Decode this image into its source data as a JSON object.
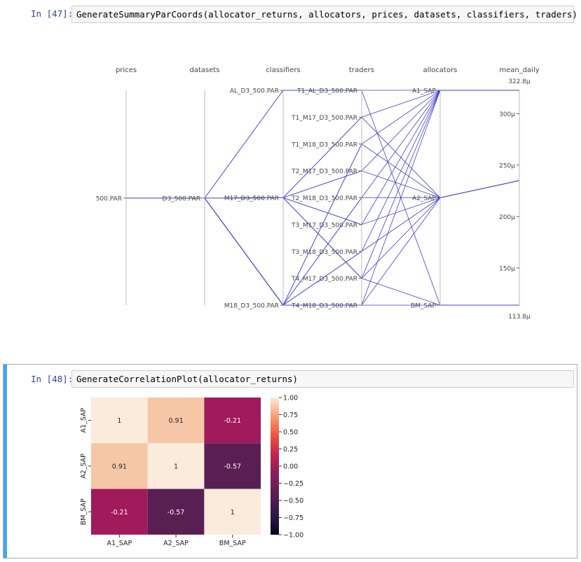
{
  "cells": [
    {
      "prompt": "In [47]:",
      "code": "GenerateSummaryParCoords(allocator_returns, allocators, prices, datasets, classifiers, traders)"
    },
    {
      "prompt": "In [48]:",
      "code": "GenerateCorrelationPlot(allocator_returns)"
    }
  ],
  "parcoords": {
    "line_color": "#3f3fcf",
    "dimensions": [
      {
        "label": "prices",
        "ticks": [
          "500.PAR"
        ]
      },
      {
        "label": "datasets",
        "ticks": [
          "D3_500.PAR"
        ]
      },
      {
        "label": "classifiers",
        "ticks": [
          "AL_D3_500.PAR",
          "M17_D3_500.PAR",
          "M18_D3_500.PAR"
        ]
      },
      {
        "label": "traders",
        "ticks": [
          "T1_AL_D3_500.PAR",
          "T1_M17_D3_500.PAR",
          "T1_M18_D3_500.PAR",
          "T2_M17_D3_500.PAR",
          "T2_M18_D3_500.PAR",
          "T3_M17_D3_500.PAR",
          "T3_M18_D3_500.PAR",
          "T4_M17_D3_500.PAR",
          "T4_M18_D3_500.PAR"
        ]
      },
      {
        "label": "allocators",
        "ticks": [
          "A1_SAP",
          "A2_SAP",
          "BM_SAP"
        ]
      },
      {
        "label": "mean_daily",
        "max_label": "322.8μ",
        "min_label": "113.8μ",
        "ticks": [
          "300μ",
          "250μ",
          "200μ",
          "150μ"
        ]
      }
    ]
  },
  "chart_data": {
    "type": "heatmap",
    "x_labels": [
      "A1_SAP",
      "A2_SAP",
      "BM_SAP"
    ],
    "y_labels": [
      "A1_SAP",
      "A2_SAP",
      "BM_SAP"
    ],
    "values": [
      [
        1,
        0.91,
        -0.21
      ],
      [
        0.91,
        1,
        -0.57
      ],
      [
        -0.21,
        -0.57,
        1
      ]
    ],
    "value_labels": [
      [
        "1",
        "0.91",
        "-0.21"
      ],
      [
        "0.91",
        "1",
        "-0.57"
      ],
      [
        "-0.21",
        "-0.57",
        "1"
      ]
    ],
    "colorbar": {
      "range": [
        -1,
        1
      ],
      "tick_labels": [
        "1.00",
        "0.75",
        "0.50",
        "0.25",
        "0.00",
        "−0.25",
        "−0.50",
        "−0.75",
        "−1.00"
      ]
    },
    "colors": {
      "high": "#faebdd",
      "upper": "#f6c7a6",
      "mid": "#a11a5b",
      "low": "#5a1f52",
      "lowest": "#03051a"
    }
  }
}
